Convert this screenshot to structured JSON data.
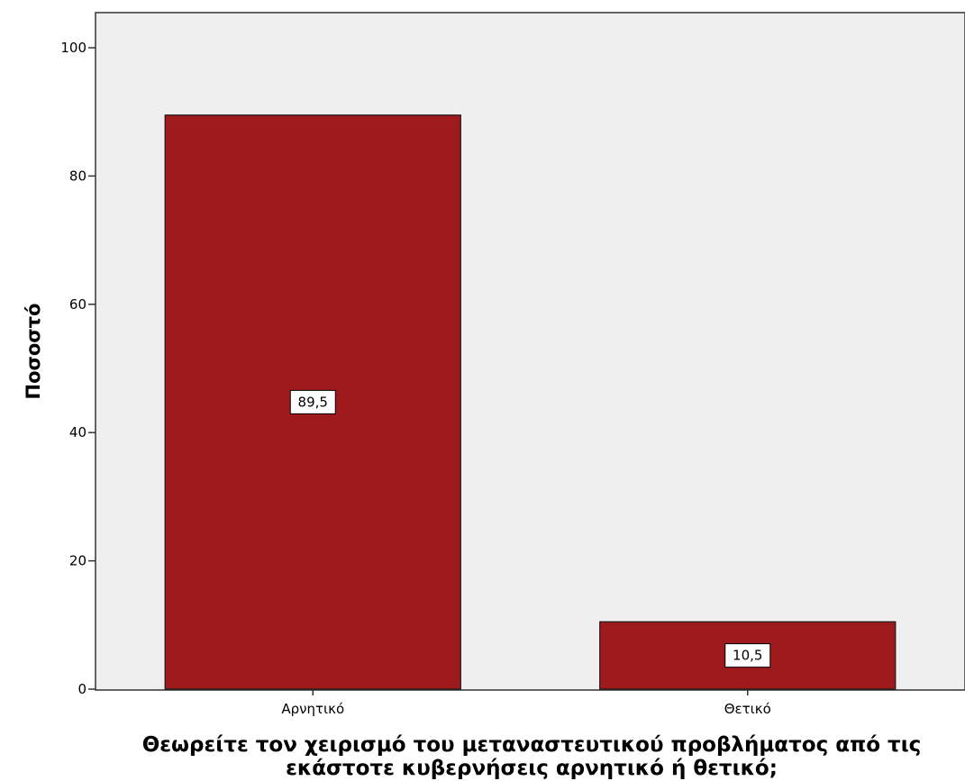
{
  "chart_data": {
    "type": "bar",
    "categories": [
      "Αρνητικό",
      "Θετικό"
    ],
    "values": [
      89.5,
      10.5
    ],
    "data_labels": [
      "89,5",
      "10,5"
    ],
    "title": "",
    "xlabel_lines": [
      "Θεωρείτε τον χειρισμό του μεταναστευτικού προβλήματος από τις",
      "εκάστοτε κυβερνήσεις αρνητικό ή θετικό;"
    ],
    "ylabel": "Ποσοστό",
    "ylim": [
      0,
      100
    ],
    "yticks": [
      0,
      20,
      40,
      60,
      80,
      100
    ],
    "grid": false,
    "legend": "none",
    "colors": {
      "bar": "#9e1a1d",
      "plot_background": "#efefef",
      "label_box": "#ffffff"
    }
  }
}
